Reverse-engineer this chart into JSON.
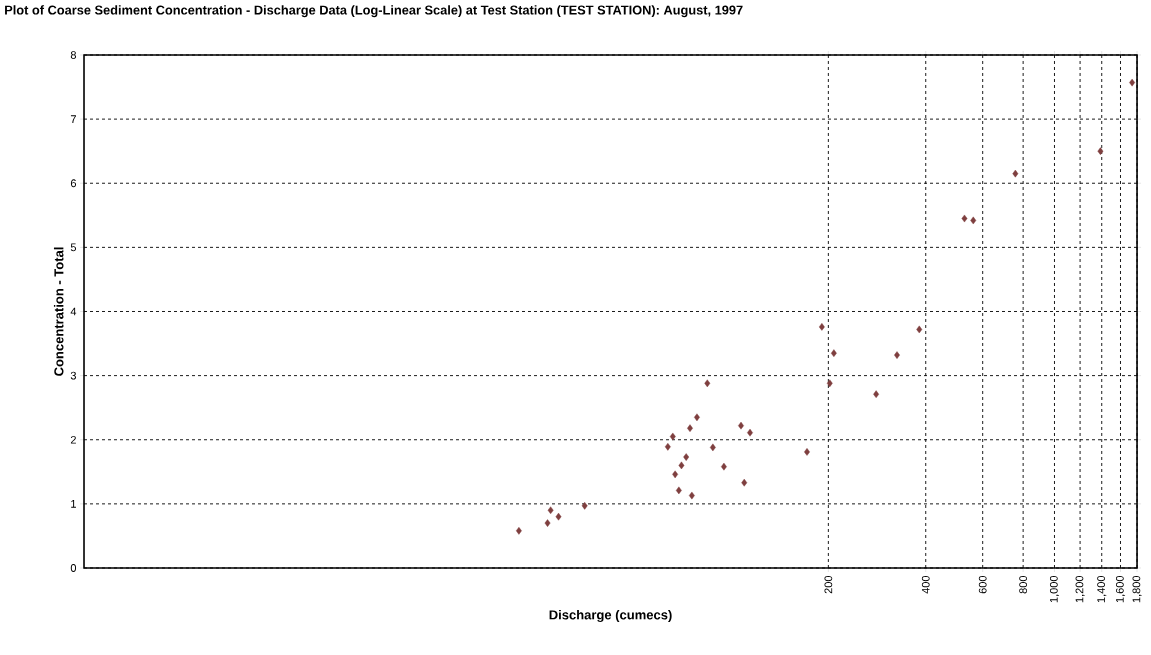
{
  "chart_data": {
    "type": "scatter",
    "title": "Plot of Coarse Sediment Concentration - Discharge Data (Log-Linear Scale) at Test Station (TEST STATION): August, 1997",
    "xlabel": "Discharge (cumecs)",
    "ylabel": "Concentration - Total",
    "log": "x",
    "grid": true,
    "marker": "diamond",
    "xlim": [
      1,
      1800
    ],
    "ylim": [
      0,
      8
    ],
    "xticks": [
      200,
      400,
      600,
      800,
      {
        "value": 1000,
        "label": "1,000"
      },
      {
        "value": 1200,
        "label": "1,200"
      },
      {
        "value": 1400,
        "label": "1,400"
      },
      {
        "value": 1600,
        "label": "1,600"
      },
      {
        "value": 1800,
        "label": "1,800"
      }
    ],
    "yticks": [
      0,
      1,
      2,
      3,
      4,
      5,
      6,
      7,
      8
    ],
    "series": [
      {
        "color": "#7f3f3f",
        "x": [
          22.1,
          27.1,
          27.7,
          29.3,
          35.3,
          63.8,
          66.1,
          67.2,
          69.0,
          70.3,
          72.7,
          74.7,
          75.7,
          78.5,
          84.5,
          87.9,
          95.1,
          107.4,
          114.5,
          109.9,
          171.8,
          191,
          208,
          202,
          281,
          326,
          382,
          527,
          561,
          757,
          1387,
          1738
        ],
        "values": [
          0.58,
          0.7,
          0.9,
          0.8,
          0.97,
          1.89,
          2.05,
          1.46,
          1.21,
          1.6,
          1.73,
          2.18,
          1.13,
          2.35,
          2.88,
          1.88,
          1.58,
          2.22,
          2.11,
          1.33,
          1.81,
          3.76,
          3.35,
          2.88,
          2.71,
          3.32,
          3.72,
          5.45,
          5.42,
          6.15,
          6.5,
          7.57
        ]
      }
    ]
  }
}
